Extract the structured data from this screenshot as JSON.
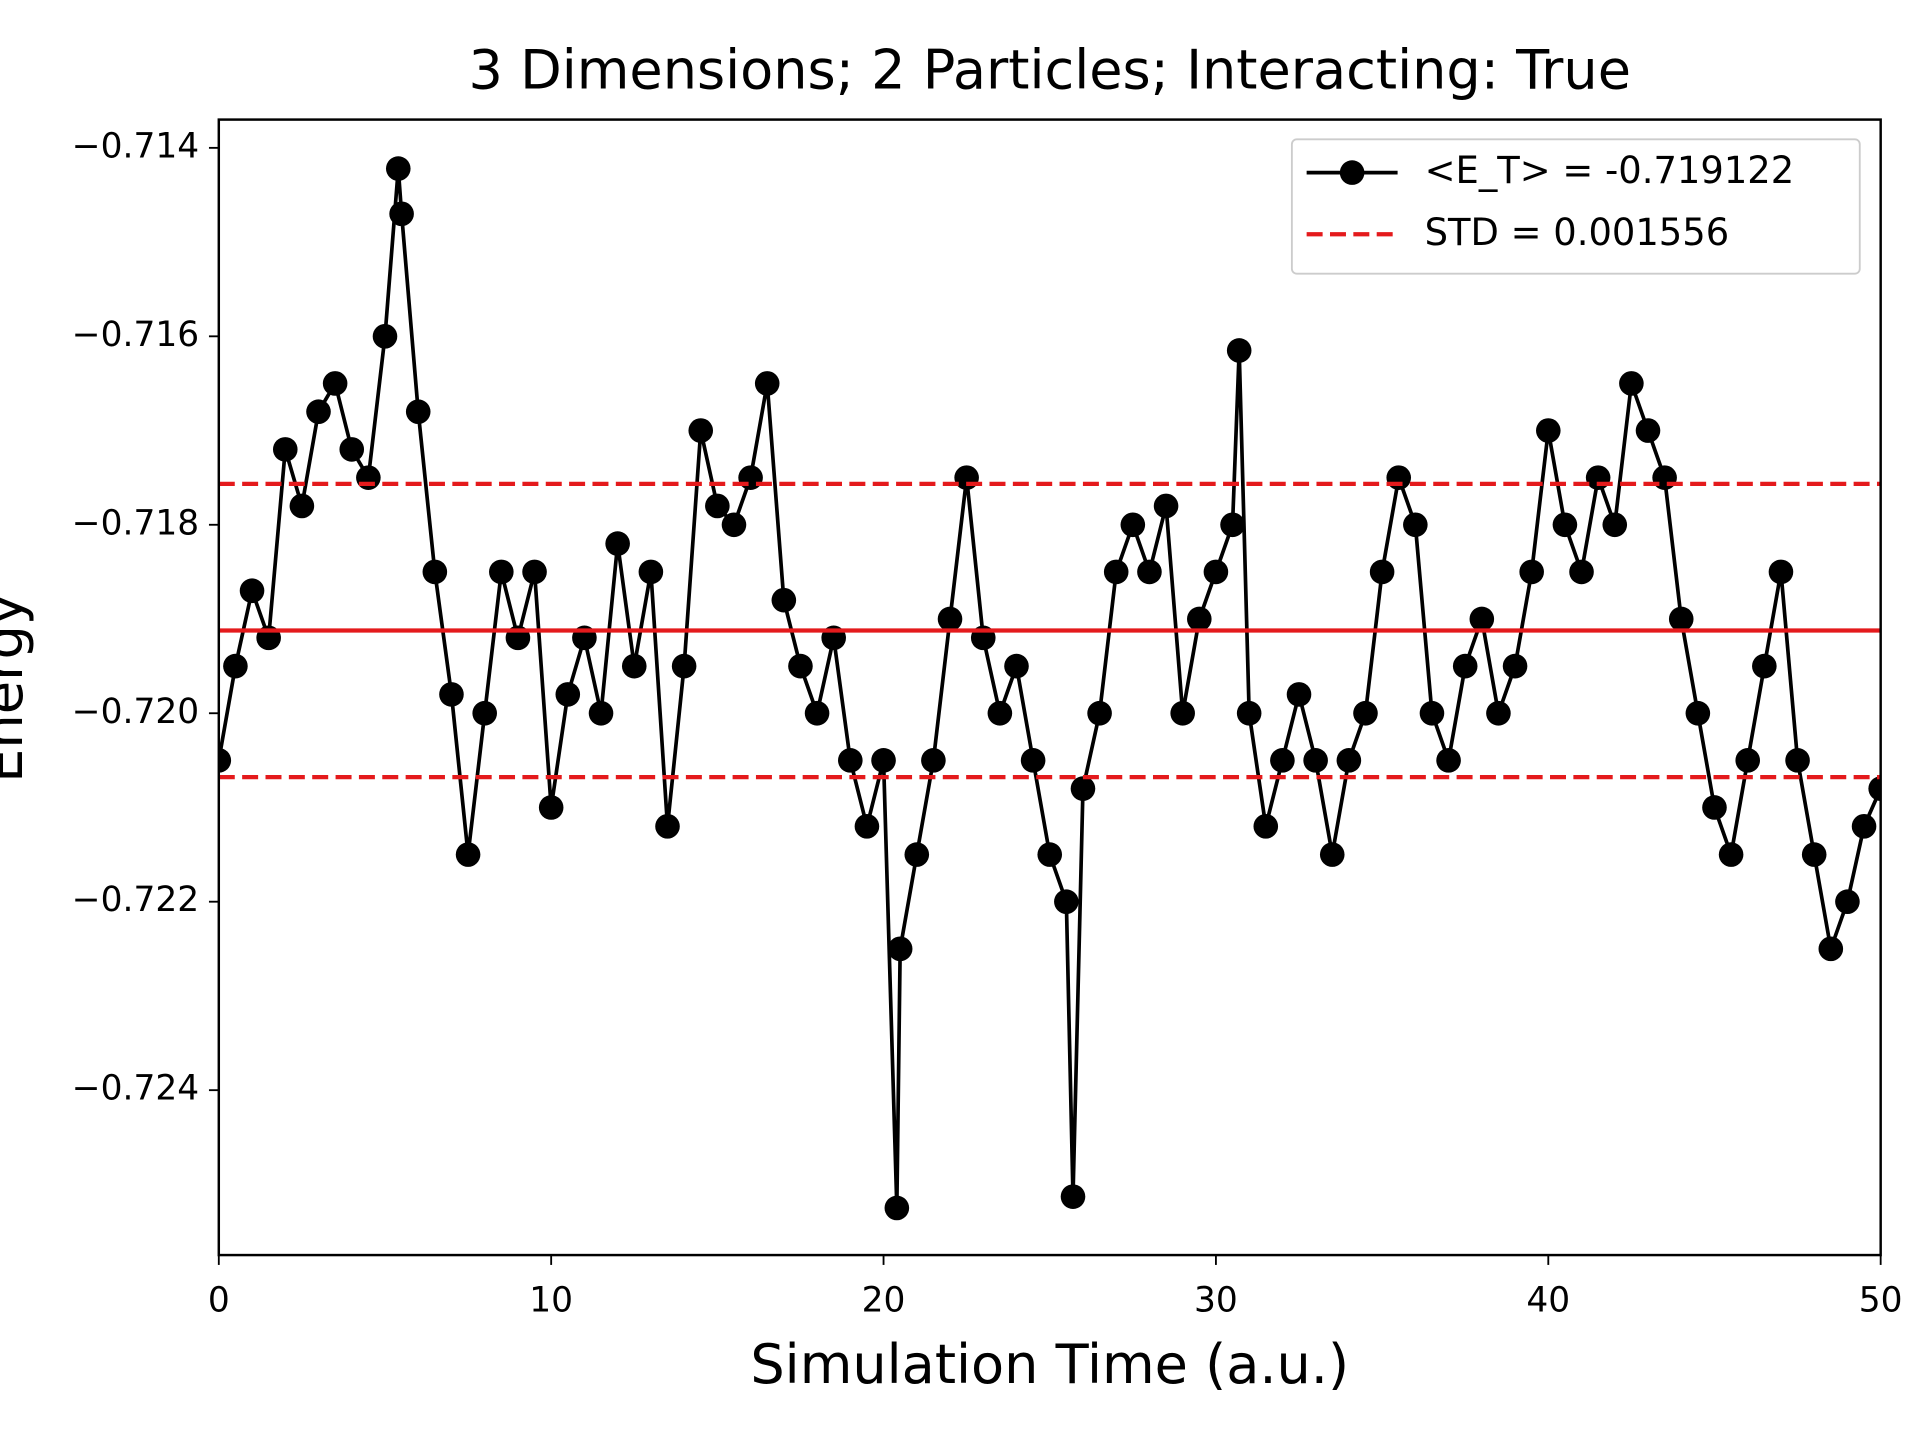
{
  "chart_data": {
    "type": "line",
    "title": "3 Dimensions; 2 Particles; Interacting: True",
    "x_label": "Simulation Time (a.u.)",
    "y_label": "Energy",
    "xlim": [
      0,
      50
    ],
    "ylim": [
      -0.72575,
      -0.7137
    ],
    "xticks": [
      0,
      10,
      20,
      30,
      40,
      50
    ],
    "yticks": [
      {
        "value": -0.714,
        "label": "−0.714"
      },
      {
        "value": -0.716,
        "label": "−0.716"
      },
      {
        "value": -0.718,
        "label": "−0.718"
      },
      {
        "value": -0.72,
        "label": "−0.720"
      },
      {
        "value": -0.722,
        "label": "−0.722"
      },
      {
        "value": -0.724,
        "label": "−0.724"
      }
    ],
    "legend": "upper right",
    "mean": -0.719122,
    "std": 0.001556,
    "reference_color": "#e41a1c",
    "series": [
      {
        "name": "<E_T> = -0.719122",
        "color": "#000000",
        "x": [
          0,
          0.5,
          1,
          1.5,
          2,
          2.5,
          3,
          3.5,
          4,
          4.5,
          5,
          5.4,
          5.5,
          6,
          6.5,
          7,
          7.5,
          8,
          8.5,
          9,
          9.5,
          10,
          10.5,
          11,
          11.5,
          12,
          12.5,
          13,
          13.5,
          14,
          14.5,
          15,
          15.5,
          16,
          16.5,
          17,
          17.5,
          18,
          18.5,
          19,
          19.5,
          20,
          20.4,
          20.5,
          21,
          21.5,
          22,
          22.5,
          23,
          23.5,
          24,
          24.5,
          25,
          25.5,
          25.7,
          26,
          26.5,
          27,
          27.5,
          28,
          28.5,
          29,
          29.5,
          30,
          30.5,
          30.7,
          31,
          31.5,
          32,
          32.5,
          33,
          33.5,
          34,
          34.5,
          35,
          35.5,
          36,
          36.5,
          37,
          37.5,
          38,
          38.5,
          39,
          39.5,
          40,
          40.5,
          41,
          41.5,
          42,
          42.5,
          43,
          43.5,
          44,
          44.5,
          45,
          45.5,
          46,
          46.5,
          47,
          47.5,
          48,
          48.5,
          49,
          49.5,
          50
        ],
        "values": [
          -0.7205,
          -0.7195,
          -0.7187,
          -0.7192,
          -0.7172,
          -0.7178,
          -0.7168,
          -0.7165,
          -0.7172,
          -0.7175,
          -0.716,
          -0.71422,
          -0.7147,
          -0.7168,
          -0.7185,
          -0.7198,
          -0.7215,
          -0.72,
          -0.7185,
          -0.7192,
          -0.7185,
          -0.721,
          -0.7198,
          -0.7192,
          -0.72,
          -0.7182,
          -0.7195,
          -0.7185,
          -0.7212,
          -0.7195,
          -0.717,
          -0.7178,
          -0.718,
          -0.7175,
          -0.7165,
          -0.7188,
          -0.7195,
          -0.72,
          -0.7192,
          -0.7205,
          -0.7212,
          -0.7205,
          -0.72525,
          -0.7225,
          -0.7215,
          -0.7205,
          -0.719,
          -0.7175,
          -0.7192,
          -0.72,
          -0.7195,
          -0.7205,
          -0.7215,
          -0.722,
          -0.72513,
          -0.7208,
          -0.72,
          -0.7185,
          -0.718,
          -0.7185,
          -0.7178,
          -0.72,
          -0.719,
          -0.7185,
          -0.718,
          -0.71615,
          -0.72,
          -0.7212,
          -0.7205,
          -0.7198,
          -0.7205,
          -0.7215,
          -0.7205,
          -0.72,
          -0.7185,
          -0.7175,
          -0.718,
          -0.72,
          -0.7205,
          -0.7195,
          -0.719,
          -0.72,
          -0.7195,
          -0.7185,
          -0.717,
          -0.718,
          -0.7185,
          -0.7175,
          -0.718,
          -0.7165,
          -0.717,
          -0.7175,
          -0.719,
          -0.72,
          -0.721,
          -0.7215,
          -0.7205,
          -0.7195,
          -0.7185,
          -0.7205,
          -0.7215,
          -0.7225,
          -0.722,
          -0.7212,
          -0.7208
        ]
      },
      {
        "name": "STD = 0.001556",
        "color": "#e41a1c"
      }
    ]
  }
}
